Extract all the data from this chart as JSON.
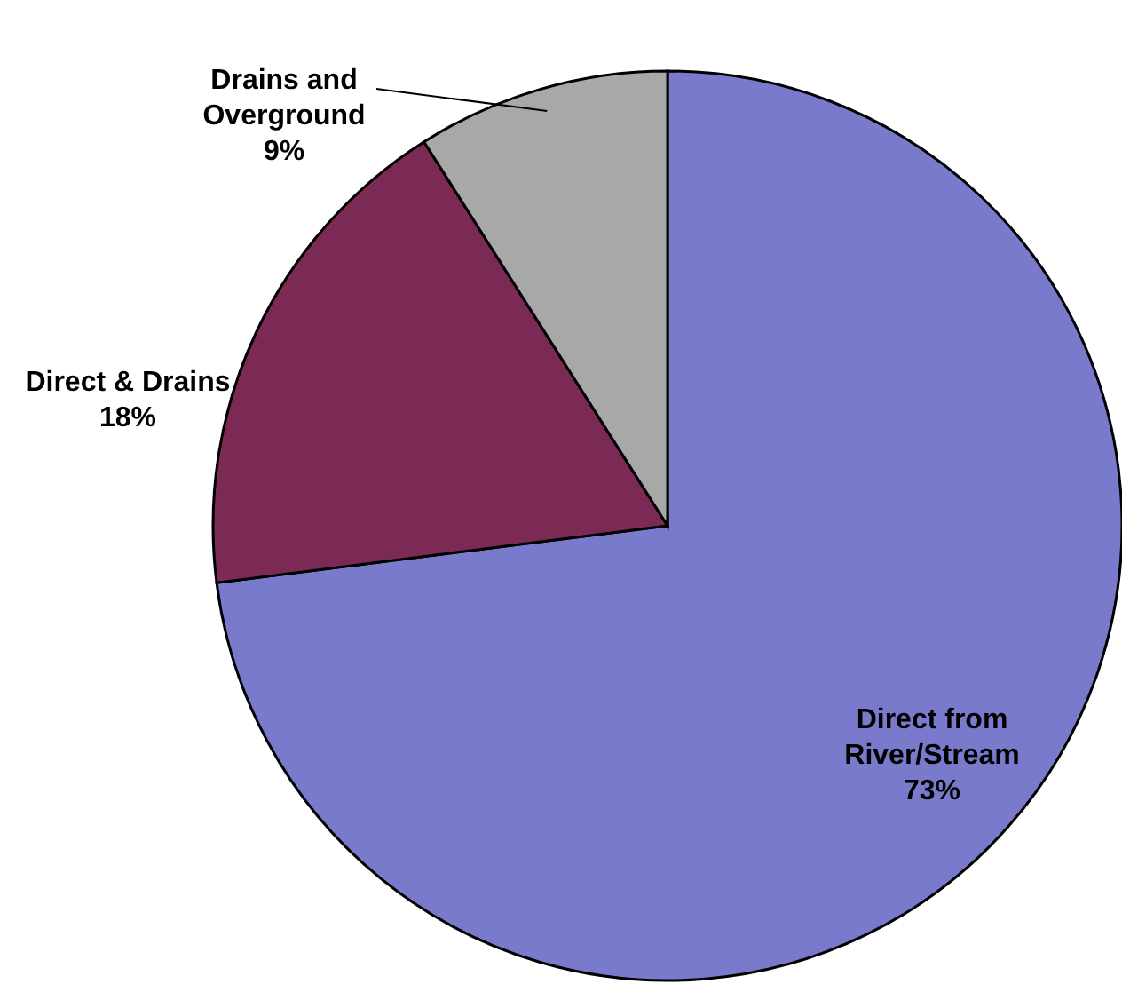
{
  "chart_data": {
    "type": "pie",
    "categories": [
      "Direct from River/Stream",
      "Direct & Drains",
      "Drains and Overground"
    ],
    "values": [
      73,
      18,
      9
    ],
    "colors": [
      "#7a7acc",
      "#7a2a55",
      "#a8a8a8"
    ],
    "value_labels": [
      "73%",
      "18%",
      "9%"
    ]
  }
}
